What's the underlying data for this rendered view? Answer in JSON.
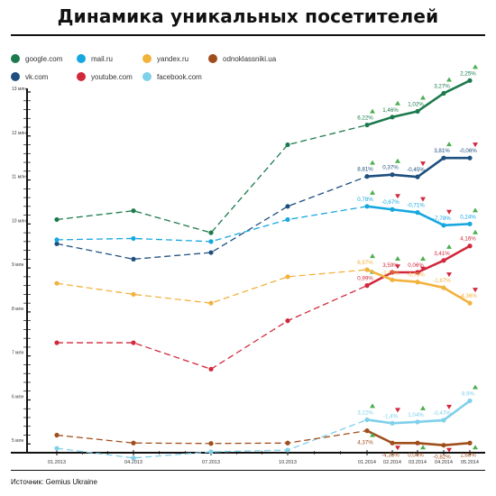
{
  "title": "Динамика уникальных посетителей",
  "source": "Источник: Gemius Ukraine",
  "legend": [
    {
      "label": "google.com",
      "color": "#1c7a4c"
    },
    {
      "label": "mail.ru",
      "color": "#17a7e0"
    },
    {
      "label": "yandex.ru",
      "color": "#f2b23e"
    },
    {
      "label": "odnoklassniki.ua",
      "color": "#a04d1c"
    },
    {
      "label": "vk.com",
      "color": "#1f4f7e"
    },
    {
      "label": "youtube.com",
      "color": "#d1283b"
    },
    {
      "label": "facebook.com",
      "color": "#7fd0ea"
    }
  ],
  "colors": {
    "up": "#4caf50",
    "down": "#d1283b",
    "axis": "#111111",
    "grid": "#dddddd"
  },
  "chart_data": {
    "type": "line",
    "title": "Динамика уникальных посетителей",
    "y_tick_labels": [
      "5 млн",
      "6 млн",
      "7 млн",
      "8 млн",
      "9 млн",
      "10 млн",
      "11 млн",
      "12 млн",
      "13 млн"
    ],
    "y_ticks": [
      5,
      6,
      7,
      8,
      9,
      10,
      11,
      12,
      13
    ],
    "ylim": [
      4.8,
      13.0
    ],
    "x_labels": [
      "01.2013",
      "04.2013",
      "07.2013",
      "10.2013",
      "01.2014",
      "02.2014",
      "03.2014",
      "04.2014",
      "05.2014"
    ],
    "x_month_index": [
      0,
      3,
      6,
      9,
      12,
      13,
      14,
      15,
      16
    ],
    "grid": false,
    "legend_position": "top",
    "series": [
      {
        "name": "google.com",
        "color": "#1c7a4c",
        "x": [
          0,
          3,
          6,
          9,
          12,
          13,
          14,
          15,
          16
        ],
        "y": [
          10.1,
          10.3,
          9.8,
          11.8,
          12.25,
          12.43,
          12.56,
          12.97,
          13.26
        ],
        "changes": [
          "6,22%",
          "1,46%",
          "1,02%",
          "3,27%",
          "2,25%"
        ]
      },
      {
        "name": "vk.com",
        "color": "#1f4f7e",
        "x": [
          0,
          3,
          6,
          9,
          12,
          13,
          14,
          15,
          16
        ],
        "y": [
          9.55,
          9.2,
          9.35,
          10.4,
          11.08,
          11.12,
          11.07,
          11.5,
          11.5
        ],
        "changes": [
          "8,81%",
          "0,37%",
          "-0,45%",
          "3,81%",
          "-0,06%"
        ]
      },
      {
        "name": "mail.ru",
        "color": "#17a7e0",
        "x": [
          0,
          3,
          6,
          9,
          12,
          13,
          14,
          15,
          16
        ],
        "y": [
          9.64,
          9.67,
          9.6,
          10.1,
          10.4,
          10.33,
          10.26,
          9.97,
          10.0
        ],
        "changes": [
          "0,78%",
          "-0,67%",
          "-0,71%",
          "-7,78%",
          "0,24%"
        ]
      },
      {
        "name": "youtube.com",
        "color": "#d1283b",
        "x": [
          0,
          3,
          6,
          9,
          12,
          13,
          14,
          15,
          16
        ],
        "y": [
          7.3,
          7.3,
          6.7,
          7.8,
          8.6,
          8.9,
          8.9,
          9.17,
          9.5
        ],
        "changes": [
          "0,99%",
          "3,59%",
          "0,06%",
          "3,41%",
          "4,16%"
        ]
      },
      {
        "name": "yandex.ru",
        "color": "#f2b23e",
        "x": [
          0,
          3,
          6,
          9,
          12,
          13,
          14,
          15,
          16
        ],
        "y": [
          8.65,
          8.4,
          8.2,
          8.8,
          8.96,
          8.73,
          8.68,
          8.55,
          8.2
        ],
        "changes": [
          "6,97%",
          "-1,76%",
          "-0,75%",
          "-1,67%",
          "-4,36%"
        ]
      },
      {
        "name": "facebook.com",
        "color": "#7fd0ea",
        "x": [
          0,
          3,
          6,
          9,
          12,
          13,
          14,
          15,
          16
        ],
        "y": [
          4.9,
          4.68,
          4.82,
          4.86,
          5.55,
          5.47,
          5.5,
          5.54,
          5.98
        ],
        "changes": [
          "3,22%",
          "-1,4%",
          "1,04%",
          "-0,47%",
          "8,9%"
        ]
      },
      {
        "name": "odnoklassniki.ua",
        "color": "#a04d1c",
        "x": [
          0,
          3,
          6,
          9,
          12,
          13,
          14,
          15,
          16
        ],
        "y": [
          5.2,
          5.02,
          5.01,
          5.02,
          5.3,
          5.02,
          5.02,
          4.97,
          5.02
        ],
        "changes": [
          "4,37%",
          "-4,35%",
          "0,04%",
          "-0,82%",
          "1,68%"
        ]
      }
    ]
  }
}
